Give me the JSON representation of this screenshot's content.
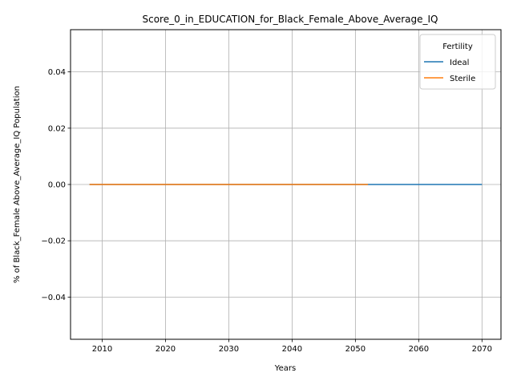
{
  "chart_data": {
    "type": "line",
    "title": "Score_0_in_EDUCATION_for_Black_Female_Above_Average_IQ",
    "xlabel": "Years",
    "ylabel": "% of Black_Female Above_Average_IQ Population",
    "xlim": [
      2005,
      2073
    ],
    "ylim": [
      -0.055,
      0.055
    ],
    "xticks": [
      2010,
      2020,
      2030,
      2040,
      2050,
      2060,
      2070
    ],
    "yticks": [
      -0.04,
      -0.02,
      0.0,
      0.02,
      0.04
    ],
    "ytick_labels": [
      "−0.04",
      "−0.02",
      "0.00",
      "0.02",
      "0.04"
    ],
    "grid": true,
    "legend": {
      "title": "Fertility",
      "placement": "top-right"
    },
    "series": [
      {
        "name": "Ideal",
        "color": "#1f77b4",
        "x": [
          2008,
          2070
        ],
        "y": [
          0,
          0
        ]
      },
      {
        "name": "Sterile",
        "color": "#ff7f0e",
        "x": [
          2008,
          2052
        ],
        "y": [
          0,
          0
        ]
      }
    ]
  }
}
